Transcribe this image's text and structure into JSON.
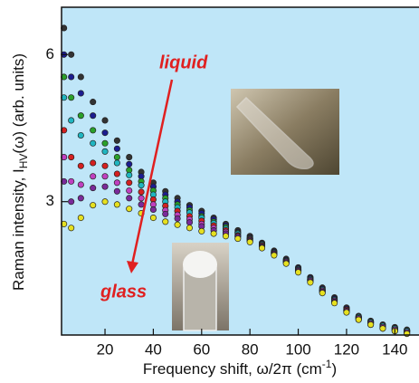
{
  "chart_data": {
    "type": "scatter",
    "xlabel": {
      "main": "Frequency shift, ω/2π  (cm",
      "sup": "-1",
      "end": ")"
    },
    "ylabel": {
      "main": "Raman intensity, I",
      "sub": "HV",
      "end": "(ω)  (arb. units)"
    },
    "annotations": {
      "top": "liquid",
      "bottom": "glass"
    },
    "xlim": [
      2,
      150
    ],
    "xticks": [
      20,
      40,
      60,
      80,
      100,
      120,
      140
    ],
    "ylim": [
      1.6,
      7.5
    ],
    "yticks": [
      3,
      6
    ],
    "ylog": true,
    "background": "#bfe6f8",
    "x": [
      3,
      6,
      10,
      15,
      20,
      25,
      30,
      35,
      40,
      45,
      50,
      55,
      60,
      65,
      70,
      75,
      80,
      85,
      90,
      95,
      100,
      105,
      110,
      115,
      120,
      125,
      130,
      135,
      140,
      145
    ],
    "series": [
      {
        "color": "#333333",
        "values": [
          6.8,
          6.0,
          5.4,
          4.8,
          4.4,
          4.0,
          3.7,
          3.45,
          3.28,
          3.15,
          3.05,
          2.95,
          2.87,
          2.78,
          2.7,
          2.62,
          2.55,
          2.47,
          2.38,
          2.29,
          2.2,
          2.1,
          2.0,
          1.91,
          1.82,
          1.75,
          1.71,
          1.68,
          1.66,
          1.64
        ]
      },
      {
        "color": "#1c1c90",
        "values": [
          6.0,
          5.4,
          5.0,
          4.5,
          4.15,
          3.85,
          3.58,
          3.38,
          3.22,
          3.1,
          3.0,
          2.92,
          2.84,
          2.76,
          2.68,
          2.6,
          2.53,
          2.46,
          2.37,
          2.28,
          2.19,
          2.09,
          1.99,
          1.9,
          1.81,
          1.74,
          1.7,
          1.67,
          1.65,
          1.63
        ]
      },
      {
        "color": "#2aa02a",
        "values": [
          5.4,
          4.9,
          4.5,
          4.2,
          3.95,
          3.7,
          3.48,
          3.3,
          3.16,
          3.05,
          2.96,
          2.88,
          2.8,
          2.73,
          2.66,
          2.59,
          2.52,
          2.45,
          2.36,
          2.27,
          2.18,
          2.08,
          1.98,
          1.89,
          1.8,
          1.74,
          1.7,
          1.67,
          1.65,
          1.63
        ]
      },
      {
        "color": "#1fb5c0",
        "values": [
          4.9,
          4.4,
          4.1,
          3.95,
          3.8,
          3.6,
          3.4,
          3.24,
          3.1,
          3.0,
          2.92,
          2.85,
          2.78,
          2.71,
          2.64,
          2.58,
          2.52,
          2.45,
          2.36,
          2.27,
          2.18,
          2.08,
          1.98,
          1.89,
          1.8,
          1.74,
          1.7,
          1.67,
          1.65,
          1.63
        ]
      },
      {
        "color": "#d42020",
        "values": [
          4.2,
          3.7,
          3.55,
          3.6,
          3.55,
          3.42,
          3.28,
          3.14,
          3.03,
          2.94,
          2.87,
          2.8,
          2.74,
          2.68,
          2.62,
          2.56,
          2.51,
          2.44,
          2.35,
          2.26,
          2.17,
          2.07,
          1.97,
          1.88,
          1.8,
          1.73,
          1.69,
          1.66,
          1.64,
          1.62
        ]
      },
      {
        "color": "#c040c0",
        "values": [
          3.7,
          3.3,
          3.25,
          3.38,
          3.38,
          3.28,
          3.16,
          3.05,
          2.96,
          2.88,
          2.82,
          2.76,
          2.7,
          2.65,
          2.6,
          2.55,
          2.5,
          2.43,
          2.35,
          2.26,
          2.17,
          2.07,
          1.97,
          1.88,
          1.79,
          1.73,
          1.69,
          1.66,
          1.64,
          1.62
        ]
      },
      {
        "color": "#7a2a9a",
        "values": [
          3.3,
          3.0,
          3.05,
          3.2,
          3.22,
          3.15,
          3.05,
          2.96,
          2.89,
          2.83,
          2.77,
          2.72,
          2.67,
          2.62,
          2.58,
          2.54,
          2.49,
          2.42,
          2.34,
          2.25,
          2.16,
          2.06,
          1.96,
          1.87,
          1.79,
          1.72,
          1.68,
          1.65,
          1.63,
          1.61
        ]
      },
      {
        "color": "#e6e020",
        "values": [
          2.7,
          2.65,
          2.78,
          2.95,
          3.0,
          2.96,
          2.9,
          2.84,
          2.78,
          2.73,
          2.69,
          2.65,
          2.61,
          2.58,
          2.55,
          2.52,
          2.48,
          2.41,
          2.33,
          2.24,
          2.15,
          2.05,
          1.95,
          1.86,
          1.78,
          1.72,
          1.68,
          1.65,
          1.63,
          1.61
        ]
      }
    ]
  }
}
